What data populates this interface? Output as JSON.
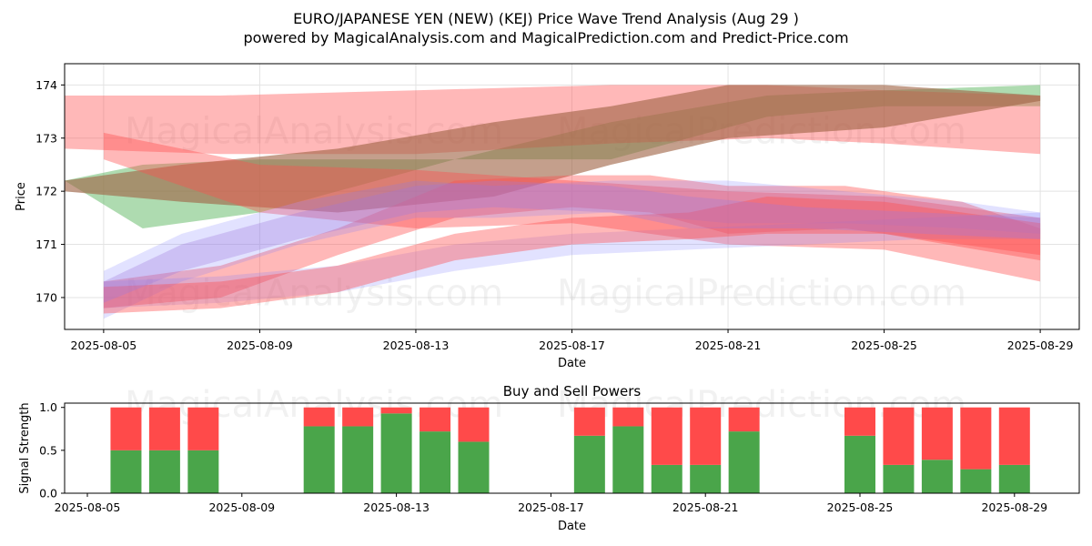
{
  "title_line1": "EURO/JAPANESE YEN (NEW) (KEJ) Price Wave Trend Analysis (Aug 29 )",
  "title_line2": "powered by MagicalAnalysis.com and MagicalPrediction.com and Predict-Price.com",
  "watermarks": [
    "MagicalAnalysis.com",
    "MagicalPrediction.com"
  ],
  "colors": {
    "green": "#4caf50",
    "red": "#ff4d4d",
    "blue": "#7b7bff",
    "buy": "#4aa54a",
    "sell": "#ff4a4a"
  },
  "chart_data": [
    {
      "type": "area",
      "title": "",
      "xlabel": "Date",
      "ylabel": "Price",
      "x_ticks": [
        "2025-08-05",
        "2025-08-09",
        "2025-08-13",
        "2025-08-17",
        "2025-08-21",
        "2025-08-25",
        "2025-08-29"
      ],
      "y_ticks": [
        170,
        171,
        172,
        173,
        174
      ],
      "xlim": [
        "2025-08-04",
        "2025-08-30"
      ],
      "ylim": [
        169.4,
        174.4
      ],
      "grid": true,
      "series": [
        {
          "color": "green",
          "x": [
            "2025-08-04",
            "2025-08-06",
            "2025-08-09",
            "2025-08-14",
            "2025-08-18",
            "2025-08-22",
            "2025-08-25",
            "2025-08-29"
          ],
          "upper": [
            172.2,
            172.5,
            172.6,
            172.6,
            173.3,
            173.8,
            173.9,
            174.0
          ],
          "lower": [
            172.2,
            171.3,
            171.6,
            172.6,
            172.6,
            173.4,
            173.6,
            173.6
          ]
        },
        {
          "color": "red",
          "x": [
            "2025-08-04",
            "2025-08-08",
            "2025-08-13",
            "2025-08-18",
            "2025-08-22",
            "2025-08-25",
            "2025-08-29"
          ],
          "upper": [
            173.8,
            173.8,
            173.9,
            174.0,
            174.0,
            173.9,
            173.8
          ],
          "lower": [
            172.8,
            172.7,
            172.7,
            172.9,
            173.0,
            172.9,
            172.7
          ]
        },
        {
          "color": "brown",
          "x": [
            "2025-08-04",
            "2025-08-07",
            "2025-08-11",
            "2025-08-15",
            "2025-08-18",
            "2025-08-21",
            "2025-08-25",
            "2025-08-29"
          ],
          "upper": [
            172.2,
            172.5,
            172.8,
            173.3,
            173.6,
            174.0,
            174.0,
            173.8
          ],
          "lower": [
            172.0,
            171.8,
            171.6,
            171.9,
            172.5,
            173.0,
            173.2,
            173.7
          ]
        },
        {
          "color": "red",
          "x": [
            "2025-08-05",
            "2025-08-09",
            "2025-08-13",
            "2025-08-17",
            "2025-08-21",
            "2025-08-25",
            "2025-08-29"
          ],
          "upper": [
            173.1,
            172.5,
            172.4,
            172.2,
            172.0,
            171.9,
            171.5
          ],
          "lower": [
            172.6,
            171.6,
            171.3,
            171.4,
            171.0,
            170.9,
            170.3
          ]
        },
        {
          "color": "red",
          "x": [
            "2025-08-05",
            "2025-08-08",
            "2025-08-11",
            "2025-08-14",
            "2025-08-17",
            "2025-08-19",
            "2025-08-21",
            "2025-08-24",
            "2025-08-27",
            "2025-08-29"
          ],
          "upper": [
            170.3,
            170.6,
            171.3,
            172.2,
            172.3,
            172.3,
            172.1,
            172.1,
            171.8,
            171.3
          ],
          "lower": [
            169.8,
            170.0,
            170.8,
            171.5,
            171.7,
            171.6,
            171.2,
            171.3,
            171.0,
            170.8
          ]
        },
        {
          "color": "blue",
          "x": [
            "2025-08-05",
            "2025-08-07",
            "2025-08-10",
            "2025-08-13",
            "2025-08-15",
            "2025-08-18",
            "2025-08-21",
            "2025-08-24",
            "2025-08-27",
            "2025-08-29"
          ],
          "upper": [
            170.5,
            171.2,
            171.8,
            172.2,
            172.1,
            172.2,
            172.2,
            172.0,
            171.8,
            171.6
          ],
          "lower": [
            169.6,
            170.3,
            171.0,
            171.5,
            171.5,
            171.6,
            171.4,
            171.4,
            171.3,
            171.2
          ]
        },
        {
          "color": "blue",
          "x": [
            "2025-08-05",
            "2025-08-08",
            "2025-08-11",
            "2025-08-14",
            "2025-08-17",
            "2025-08-20",
            "2025-08-23",
            "2025-08-26",
            "2025-08-29"
          ],
          "upper": [
            170.3,
            170.4,
            170.6,
            171.0,
            171.2,
            171.3,
            171.4,
            171.5,
            171.6
          ],
          "lower": [
            169.8,
            169.9,
            170.1,
            170.5,
            170.8,
            170.9,
            171.0,
            171.1,
            171.1
          ]
        },
        {
          "color": "red",
          "x": [
            "2025-08-05",
            "2025-08-08",
            "2025-08-11",
            "2025-08-14",
            "2025-08-17",
            "2025-08-20",
            "2025-08-22",
            "2025-08-25",
            "2025-08-29"
          ],
          "upper": [
            170.2,
            170.3,
            170.6,
            171.2,
            171.5,
            171.6,
            171.9,
            171.8,
            171.4
          ],
          "lower": [
            169.7,
            169.8,
            170.1,
            170.7,
            171.0,
            171.1,
            171.2,
            171.2,
            170.7
          ]
        },
        {
          "color": "purple",
          "x": [
            "2025-08-05",
            "2025-08-07",
            "2025-08-10",
            "2025-08-13",
            "2025-08-15",
            "2025-08-18",
            "2025-08-20",
            "2025-08-23",
            "2025-08-26",
            "2025-08-29"
          ],
          "upper": [
            170.3,
            171.0,
            171.6,
            172.1,
            172.2,
            172.1,
            171.9,
            171.7,
            171.6,
            171.5
          ],
          "lower": [
            169.9,
            170.5,
            171.1,
            171.6,
            171.7,
            171.6,
            171.3,
            171.3,
            171.2,
            171.1
          ]
        }
      ]
    },
    {
      "type": "bar",
      "title": "Buy and Sell Powers",
      "xlabel": "Date",
      "ylabel": "Signal Strength",
      "x_ticks": [
        "2025-08-05",
        "2025-08-09",
        "2025-08-13",
        "2025-08-17",
        "2025-08-21",
        "2025-08-25",
        "2025-08-29"
      ],
      "y_ticks": [
        "0.0",
        "0.5",
        "1.0"
      ],
      "ylim": [
        0,
        1.05
      ],
      "categories": [
        "2025-08-06",
        "2025-08-07",
        "2025-08-08",
        "2025-08-11",
        "2025-08-12",
        "2025-08-13",
        "2025-08-14",
        "2025-08-15",
        "2025-08-18",
        "2025-08-19",
        "2025-08-20",
        "2025-08-21",
        "2025-08-22",
        "2025-08-25",
        "2025-08-26",
        "2025-08-27",
        "2025-08-28",
        "2025-08-29"
      ],
      "series": [
        {
          "name": "Buy",
          "color": "buy",
          "values": [
            0.5,
            0.5,
            0.5,
            0.78,
            0.78,
            0.93,
            0.72,
            0.6,
            0.67,
            0.78,
            0.33,
            0.33,
            0.72,
            0.67,
            0.33,
            0.39,
            0.28,
            0.33
          ]
        },
        {
          "name": "Sell",
          "color": "sell",
          "values": [
            0.5,
            0.5,
            0.5,
            0.22,
            0.22,
            0.07,
            0.28,
            0.4,
            0.33,
            0.22,
            0.67,
            0.67,
            0.28,
            0.33,
            0.67,
            0.61,
            0.72,
            0.67
          ]
        }
      ]
    }
  ]
}
